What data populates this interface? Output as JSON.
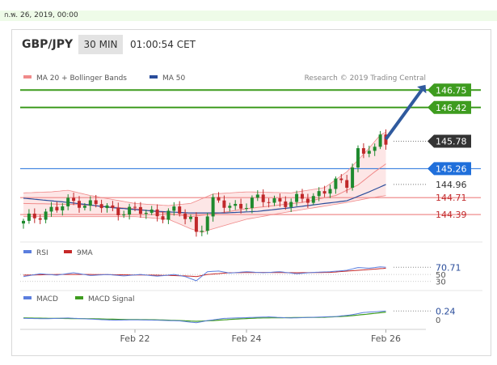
{
  "date_bar": {
    "text": "ก.พ. 26, 2019, 00:00"
  },
  "header": {
    "pair": "GBP/JPY",
    "timeframe": "30 MIN",
    "clock": "01:00:54 CET"
  },
  "colors": {
    "up": "#1e8a2e",
    "down": "#c0282a",
    "bb": "#f08a8a",
    "bb_fill": "#fde2e2",
    "ma": "#2a4d9b",
    "resistance": "#3e9c1f",
    "support": "#f2a0a0",
    "pivot": "#1f6fdb",
    "rsi": "#5b7ede",
    "nine_ma": "#c62828",
    "macd": "#5b7ede",
    "macd_signal": "#3e9c1f"
  },
  "chart_data": [
    {
      "type": "candlestick",
      "title": "",
      "legend": [
        {
          "name": "MA 20 + Bollinger Bands",
          "color": "#f08a8a"
        },
        {
          "name": "MA 50",
          "color": "#2a4d9b"
        }
      ],
      "watermark": "Research © 2019 Trading Central",
      "ylim": [
        143.9,
        147.0
      ],
      "x_ticks": [
        {
          "label": "Feb 22",
          "index": 20
        },
        {
          "label": "Feb 24",
          "index": 40
        },
        {
          "label": "Feb 26",
          "index": 65
        }
      ],
      "n_candles": 66,
      "close_path": [
        [
          0,
          144.22
        ],
        [
          3,
          144.42
        ],
        [
          6,
          144.5
        ],
        [
          8,
          144.6
        ],
        [
          10,
          144.65
        ],
        [
          12,
          144.58
        ],
        [
          14,
          144.55
        ],
        [
          16,
          144.45
        ],
        [
          18,
          144.5
        ],
        [
          20,
          144.45
        ],
        [
          22,
          144.42
        ],
        [
          24,
          144.4
        ],
        [
          26,
          144.45
        ],
        [
          28,
          144.4
        ],
        [
          30,
          144.3
        ],
        [
          31,
          144.05
        ],
        [
          32,
          144.2
        ],
        [
          34,
          144.6
        ],
        [
          36,
          144.58
        ],
        [
          38,
          144.55
        ],
        [
          40,
          144.6
        ],
        [
          42,
          144.65
        ],
        [
          44,
          144.68
        ],
        [
          46,
          144.65
        ],
        [
          48,
          144.6
        ],
        [
          50,
          144.68
        ],
        [
          52,
          144.75
        ],
        [
          54,
          144.85
        ],
        [
          56,
          144.95
        ],
        [
          58,
          145.0
        ],
        [
          59,
          145.35
        ],
        [
          60,
          145.6
        ],
        [
          61,
          145.55
        ],
        [
          62,
          145.65
        ],
        [
          63,
          145.6
        ],
        [
          64,
          145.8
        ],
        [
          65,
          145.78
        ]
      ],
      "ma20": [
        [
          0,
          144.6
        ],
        [
          10,
          144.58
        ],
        [
          20,
          144.5
        ],
        [
          30,
          144.35
        ],
        [
          34,
          144.4
        ],
        [
          40,
          144.5
        ],
        [
          50,
          144.62
        ],
        [
          56,
          144.75
        ],
        [
          60,
          144.95
        ],
        [
          63,
          145.2
        ],
        [
          65,
          145.35
        ]
      ],
      "bb_upper": [
        [
          0,
          144.8
        ],
        [
          5,
          144.82
        ],
        [
          8,
          144.85
        ],
        [
          12,
          144.75
        ],
        [
          20,
          144.6
        ],
        [
          26,
          144.56
        ],
        [
          30,
          144.6
        ],
        [
          34,
          144.78
        ],
        [
          40,
          144.82
        ],
        [
          48,
          144.8
        ],
        [
          54,
          144.9
        ],
        [
          58,
          145.2
        ],
        [
          62,
          145.65
        ],
        [
          64,
          145.9
        ],
        [
          65,
          145.95
        ]
      ],
      "bb_lower": [
        [
          0,
          144.35
        ],
        [
          10,
          144.35
        ],
        [
          20,
          144.35
        ],
        [
          26,
          144.3
        ],
        [
          30,
          144.12
        ],
        [
          32,
          144.05
        ],
        [
          34,
          144.12
        ],
        [
          40,
          144.3
        ],
        [
          48,
          144.45
        ],
        [
          54,
          144.55
        ],
        [
          58,
          144.62
        ],
        [
          62,
          144.7
        ],
        [
          65,
          144.75
        ]
      ],
      "ma50": [
        [
          0,
          144.7
        ],
        [
          8,
          144.62
        ],
        [
          16,
          144.52
        ],
        [
          24,
          144.45
        ],
        [
          30,
          144.42
        ],
        [
          36,
          144.42
        ],
        [
          42,
          144.45
        ],
        [
          48,
          144.52
        ],
        [
          54,
          144.6
        ],
        [
          58,
          144.65
        ],
        [
          62,
          144.82
        ],
        [
          65,
          144.96
        ]
      ],
      "levels": [
        {
          "value": 146.75,
          "label": "146.75",
          "style": "resistance-line"
        },
        {
          "value": 146.42,
          "label": "146.42",
          "style": "resistance-line"
        },
        {
          "value": 145.78,
          "label": "145.78",
          "style": "price-tag"
        },
        {
          "value": 145.26,
          "label": "145.26",
          "style": "pivot-line"
        },
        {
          "value": 144.96,
          "label": "144.96",
          "style": "ma-tag"
        },
        {
          "value": 144.71,
          "label": "144.71",
          "style": "support-line"
        },
        {
          "value": 144.39,
          "label": "144.39",
          "style": "support-line"
        }
      ],
      "target_arrow": {
        "from": [
          65,
          145.82
        ],
        "to": [
          72,
          146.75
        ]
      }
    },
    {
      "type": "line",
      "title": "",
      "legend": [
        {
          "name": "RSI",
          "color": "#5b7ede"
        },
        {
          "name": "9MA",
          "color": "#c62828"
        }
      ],
      "ylim": [
        20,
        90
      ],
      "y_ticks": [
        "50",
        "30"
      ],
      "value_label": "70.71",
      "rsi": [
        [
          0,
          44
        ],
        [
          3,
          52
        ],
        [
          6,
          48
        ],
        [
          9,
          55
        ],
        [
          12,
          47
        ],
        [
          15,
          50
        ],
        [
          18,
          46
        ],
        [
          21,
          50
        ],
        [
          24,
          45
        ],
        [
          27,
          50
        ],
        [
          29,
          44
        ],
        [
          31,
          32
        ],
        [
          33,
          58
        ],
        [
          35,
          60
        ],
        [
          37,
          54
        ],
        [
          40,
          58
        ],
        [
          43,
          55
        ],
        [
          46,
          58
        ],
        [
          49,
          52
        ],
        [
          52,
          56
        ],
        [
          55,
          58
        ],
        [
          58,
          62
        ],
        [
          60,
          70
        ],
        [
          62,
          68
        ],
        [
          64,
          72
        ],
        [
          65,
          70.71
        ]
      ],
      "nine_ma": [
        [
          0,
          48
        ],
        [
          6,
          50
        ],
        [
          12,
          50
        ],
        [
          18,
          49
        ],
        [
          24,
          48
        ],
        [
          29,
          46
        ],
        [
          31,
          44
        ],
        [
          33,
          50
        ],
        [
          37,
          55
        ],
        [
          43,
          56
        ],
        [
          49,
          55
        ],
        [
          55,
          56
        ],
        [
          60,
          62
        ],
        [
          65,
          68
        ]
      ]
    },
    {
      "type": "line",
      "title": "",
      "legend": [
        {
          "name": "MACD",
          "color": "#5b7ede"
        },
        {
          "name": "MACD Signal",
          "color": "#3e9c1f"
        }
      ],
      "ylim": [
        -0.15,
        0.4
      ],
      "y_ticks": [
        "0"
      ],
      "value_label": "0.24",
      "macd": [
        [
          0,
          0.04
        ],
        [
          4,
          0.03
        ],
        [
          8,
          0.05
        ],
        [
          12,
          0.02
        ],
        [
          16,
          -0.01
        ],
        [
          20,
          0.0
        ],
        [
          24,
          -0.01
        ],
        [
          28,
          -0.03
        ],
        [
          31,
          -0.08
        ],
        [
          33,
          -0.02
        ],
        [
          36,
          0.04
        ],
        [
          40,
          0.06
        ],
        [
          44,
          0.08
        ],
        [
          48,
          0.05
        ],
        [
          52,
          0.07
        ],
        [
          56,
          0.09
        ],
        [
          59,
          0.14
        ],
        [
          61,
          0.2
        ],
        [
          63,
          0.22
        ],
        [
          65,
          0.24
        ]
      ],
      "macd_signal": [
        [
          0,
          0.05
        ],
        [
          6,
          0.04
        ],
        [
          12,
          0.03
        ],
        [
          18,
          0.01
        ],
        [
          24,
          0.0
        ],
        [
          28,
          -0.02
        ],
        [
          31,
          -0.04
        ],
        [
          34,
          -0.02
        ],
        [
          38,
          0.02
        ],
        [
          42,
          0.05
        ],
        [
          48,
          0.06
        ],
        [
          54,
          0.07
        ],
        [
          58,
          0.1
        ],
        [
          62,
          0.16
        ],
        [
          65,
          0.21
        ]
      ]
    }
  ]
}
